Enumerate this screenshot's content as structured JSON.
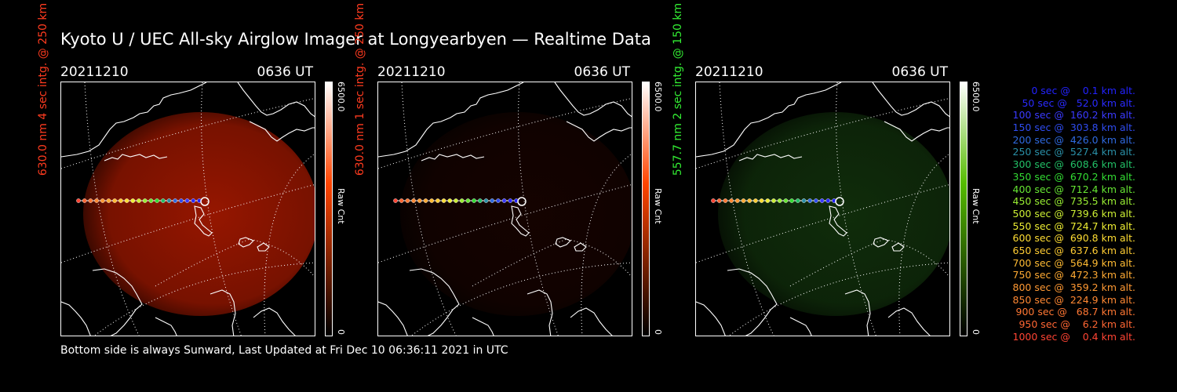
{
  "title": "Kyoto U / UEC All-sky Airglow Imager at Longyearbyen — Realtime Data",
  "footer": "Bottom side is always Sunward, Last Updated at Fri Dec 10 06:36:11 2021 in UTC",
  "panels": [
    {
      "date": "20211210",
      "time": "0636 UT",
      "side_label": "630.0 nm 4 sec intg. @ 250 km",
      "label_color": "#ff3b1f",
      "colorbar_max": "6500.0",
      "colorbar_min": "0",
      "colorbar_unit": "Raw Cnt",
      "colorbar_top_color": "#ffffff",
      "colorbar_mid_color": "#ff4400",
      "colorbar_bottom_color": "#000000",
      "airglow_color": "#b01a00",
      "airglow_intensity": 0.85
    },
    {
      "date": "20211210",
      "time": "0636 UT",
      "side_label": "630.0 nm 1 sec intg. @ 250 km",
      "label_color": "#ff3b1f",
      "colorbar_max": "6500.0",
      "colorbar_min": "0",
      "colorbar_unit": "Raw Cnt",
      "colorbar_top_color": "#ffffff",
      "colorbar_mid_color": "#ff4400",
      "colorbar_bottom_color": "#000000",
      "airglow_color": "#3a0800",
      "airglow_intensity": 0.35
    },
    {
      "date": "20211210",
      "time": "0636 UT",
      "side_label": "557.7 nm 2 sec intg. @ 150 km",
      "label_color": "#33ee33",
      "colorbar_max": "6500.0",
      "colorbar_min": "0",
      "colorbar_unit": "Raw Cnt",
      "colorbar_top_color": "#ffffff",
      "colorbar_mid_color": "#55bb00",
      "colorbar_bottom_color": "#000000",
      "airglow_color": "#1a4a12",
      "airglow_intensity": 0.6
    }
  ],
  "legend": [
    {
      "text": "   0 sec @    0.1 km alt.",
      "color": "#2222ff"
    },
    {
      "text": "  50 sec @   52.0 km alt.",
      "color": "#2a2aff"
    },
    {
      "text": " 100 sec @  160.2 km alt.",
      "color": "#3a3aff"
    },
    {
      "text": " 150 sec @  303.8 km alt.",
      "color": "#2f4cf0"
    },
    {
      "text": " 200 sec @  426.0 km alt.",
      "color": "#2f6ae0"
    },
    {
      "text": " 250 sec @  527.4 km alt.",
      "color": "#2a90a8"
    },
    {
      "text": " 300 sec @  608.6 km alt.",
      "color": "#22c066"
    },
    {
      "text": " 350 sec @  670.2 km alt.",
      "color": "#33dd33"
    },
    {
      "text": " 400 sec @  712.4 km alt.",
      "color": "#66e633"
    },
    {
      "text": " 450 sec @  735.5 km alt.",
      "color": "#99ee33"
    },
    {
      "text": " 500 sec @  739.6 km alt.",
      "color": "#ccee33"
    },
    {
      "text": " 550 sec @  724.7 km alt.",
      "color": "#eeee33"
    },
    {
      "text": " 600 sec @  690.8 km alt.",
      "color": "#ffdd33"
    },
    {
      "text": " 650 sec @  637.6 km alt.",
      "color": "#ffcc33"
    },
    {
      "text": " 700 sec @  564.9 km alt.",
      "color": "#ffbb33"
    },
    {
      "text": " 750 sec @  472.3 km alt.",
      "color": "#ffaa33"
    },
    {
      "text": " 800 sec @  359.2 km alt.",
      "color": "#ff9933"
    },
    {
      "text": " 850 sec @  224.9 km alt.",
      "color": "#ff8833"
    },
    {
      "text": " 900 sec @   68.7 km alt.",
      "color": "#ff7733"
    },
    {
      "text": " 950 sec @    6.2 km alt.",
      "color": "#ff6633"
    },
    {
      "text": "1000 sec @    0.4 km alt.",
      "color": "#ff4433"
    }
  ]
}
